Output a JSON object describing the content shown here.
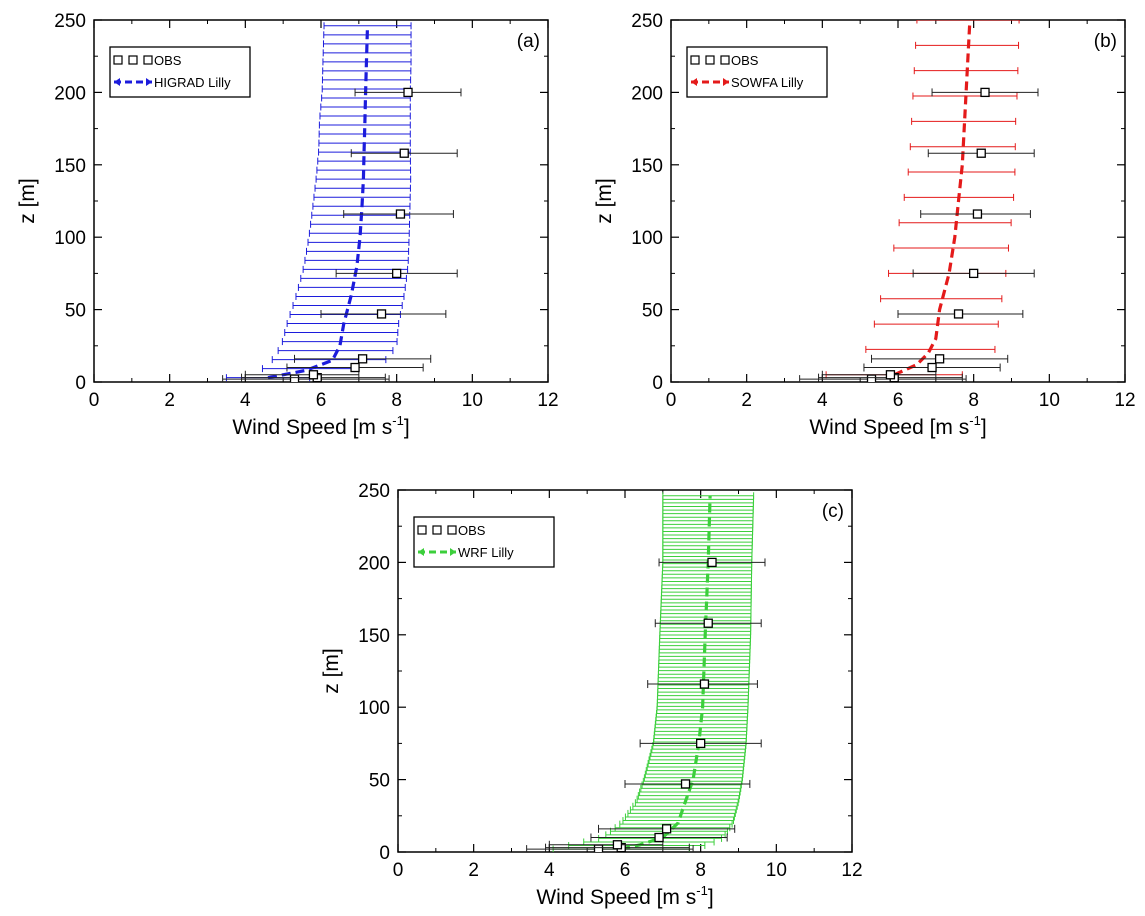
{
  "chart_data": [
    {
      "type": "line",
      "panel_label": "(a)",
      "xlabel_text": "Wind Speed [m s",
      "xlabel_sup": "-1",
      "xlabel_close": "]",
      "ylabel": "z [m]",
      "xlim": [
        0,
        12
      ],
      "ylim": [
        0,
        250
      ],
      "xticks": [
        "0",
        "2",
        "4",
        "6",
        "8",
        "10",
        "12"
      ],
      "yticks": [
        "0",
        "50",
        "100",
        "150",
        "200",
        "250"
      ],
      "grid": false,
      "legend_position": "top-left",
      "legend": [
        "OBS",
        "HIGRAD Lilly"
      ],
      "observations": {
        "name": "OBS",
        "z": [
          2,
          3,
          5,
          10,
          16,
          47,
          75,
          116,
          158,
          200
        ],
        "mean": [
          5.3,
          5.9,
          5.8,
          6.9,
          7.1,
          7.6,
          8.0,
          8.1,
          8.2,
          8.3
        ],
        "err_low": [
          3.4,
          3.9,
          4.0,
          5.1,
          5.3,
          6.0,
          6.4,
          6.6,
          6.8,
          6.9
        ],
        "err_high": [
          7.8,
          7.7,
          7.0,
          8.7,
          8.9,
          9.3,
          9.6,
          9.5,
          9.6,
          9.7
        ]
      },
      "series": [
        {
          "name": "HIGRAD Lilly",
          "color": "#1c1cdc",
          "z": [
            3,
            8,
            15,
            25,
            40,
            60,
            80,
            100,
            120,
            140,
            160,
            180,
            200,
            220,
            246
          ],
          "speed": [
            4.6,
            5.6,
            6.3,
            6.5,
            6.6,
            6.8,
            6.95,
            7.03,
            7.08,
            7.12,
            7.14,
            7.16,
            7.18,
            7.2,
            7.23
          ],
          "err_minus": [
            1.1,
            1.2,
            1.6,
            1.55,
            1.5,
            1.45,
            1.4,
            1.35,
            1.3,
            1.25,
            1.2,
            1.2,
            1.15,
            1.15,
            1.15
          ],
          "err_plus": [
            1.1,
            1.1,
            1.4,
            1.5,
            1.45,
            1.4,
            1.35,
            1.3,
            1.27,
            1.25,
            1.22,
            1.2,
            1.18,
            1.18,
            1.15
          ],
          "error_bar_count": 40
        }
      ]
    },
    {
      "type": "line",
      "panel_label": "(b)",
      "xlabel_text": "Wind Speed [m s",
      "xlabel_sup": "-1",
      "xlabel_close": "]",
      "ylabel": "z [m]",
      "xlim": [
        0,
        12
      ],
      "ylim": [
        0,
        250
      ],
      "xticks": [
        "0",
        "2",
        "4",
        "6",
        "8",
        "10",
        "12"
      ],
      "yticks": [
        "0",
        "50",
        "100",
        "150",
        "200",
        "250"
      ],
      "grid": false,
      "legend_position": "top-left",
      "legend": [
        "OBS",
        "SOWFA Lilly"
      ],
      "observations": {
        "name": "OBS",
        "z": [
          2,
          3,
          5,
          10,
          16,
          47,
          75,
          116,
          158,
          200
        ],
        "mean": [
          5.3,
          5.9,
          5.8,
          6.9,
          7.1,
          7.6,
          8.0,
          8.1,
          8.2,
          8.3
        ],
        "err_low": [
          3.4,
          3.9,
          4.0,
          5.1,
          5.3,
          6.0,
          6.4,
          6.6,
          6.8,
          6.9
        ],
        "err_high": [
          7.8,
          7.7,
          7.0,
          8.7,
          8.9,
          9.3,
          9.6,
          9.5,
          9.6,
          9.7
        ]
      },
      "series": [
        {
          "name": "SOWFA Lilly",
          "color": "#e41a1a",
          "z": [
            5,
            12,
            20,
            30,
            50,
            75,
            100,
            125,
            150,
            175,
            200,
            225,
            250
          ],
          "speed": [
            5.9,
            6.5,
            6.8,
            7.0,
            7.1,
            7.35,
            7.5,
            7.6,
            7.7,
            7.75,
            7.8,
            7.85,
            7.9
          ],
          "err_minus": [
            1.8,
            1.7,
            1.7,
            1.7,
            1.65,
            1.6,
            1.55,
            1.45,
            1.4,
            1.4,
            1.4,
            1.4,
            1.4
          ],
          "err_plus": [
            1.8,
            1.8,
            1.75,
            1.6,
            1.6,
            1.5,
            1.45,
            1.45,
            1.4,
            1.35,
            1.35,
            1.33,
            1.3
          ],
          "error_bar_count": 15
        }
      ]
    },
    {
      "type": "line",
      "panel_label": "(c)",
      "xlabel_text": "Wind Speed [m s",
      "xlabel_sup": "-1",
      "xlabel_close": "]",
      "ylabel": "z [m]",
      "xlim": [
        0,
        12
      ],
      "ylim": [
        0,
        250
      ],
      "xticks": [
        "0",
        "2",
        "4",
        "6",
        "8",
        "10",
        "12"
      ],
      "yticks": [
        "0",
        "50",
        "100",
        "150",
        "200",
        "250"
      ],
      "grid": false,
      "legend_position": "top-left",
      "legend": [
        "OBS",
        "WRF Lilly"
      ],
      "observations": {
        "name": "OBS",
        "z": [
          2,
          3,
          5,
          10,
          16,
          47,
          75,
          116,
          158,
          200
        ],
        "mean": [
          5.3,
          5.9,
          5.8,
          6.9,
          7.1,
          7.6,
          8.0,
          8.1,
          8.2,
          8.3
        ],
        "err_low": [
          3.4,
          3.9,
          4.0,
          5.1,
          5.3,
          6.0,
          6.4,
          6.6,
          6.8,
          6.9
        ],
        "err_high": [
          7.8,
          7.7,
          7.0,
          8.7,
          8.9,
          9.3,
          9.6,
          9.5,
          9.6,
          9.7
        ]
      },
      "series": [
        {
          "name": "WRF Lilly",
          "color": "#3ccf3c",
          "z": [
            2,
            5,
            10,
            20,
            35,
            50,
            75,
            100,
            150,
            200,
            246
          ],
          "speed": [
            5.9,
            6.4,
            7.0,
            7.4,
            7.6,
            7.8,
            7.95,
            8.05,
            8.12,
            8.2,
            8.25
          ],
          "err_minus": [
            1.8,
            1.8,
            1.6,
            1.5,
            1.3,
            1.3,
            1.2,
            1.2,
            1.2,
            1.2,
            1.25
          ],
          "err_plus": [
            1.8,
            1.8,
            1.6,
            1.45,
            1.4,
            1.3,
            1.25,
            1.2,
            1.2,
            1.15,
            1.15
          ],
          "error_bar_count": 100
        }
      ]
    }
  ]
}
